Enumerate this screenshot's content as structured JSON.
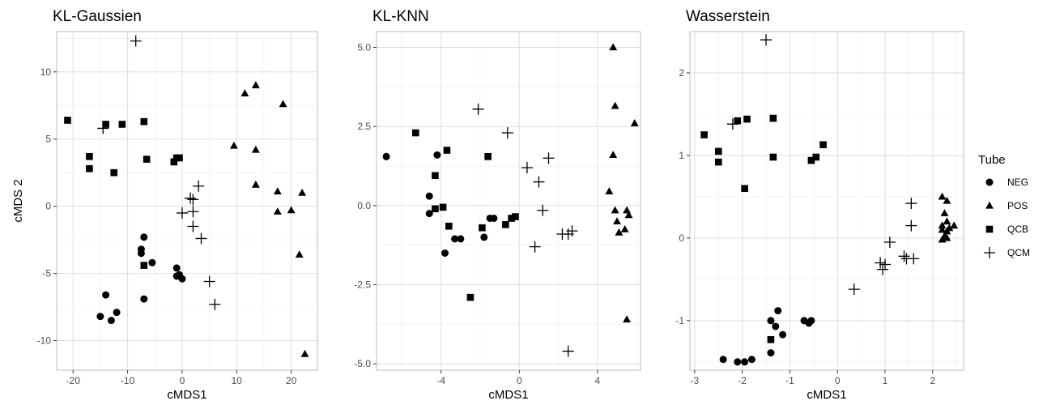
{
  "chart_data": [
    {
      "type": "scatter",
      "title": "KL-Gaussien",
      "xlabel": "cMDS1",
      "ylabel": "cMDS 2",
      "xlim": [
        -23,
        24.8
      ],
      "ylim": [
        -12.2,
        13
      ],
      "xticks": [
        -20,
        -10,
        0,
        10,
        20
      ],
      "yticks": [
        -10,
        -5,
        0,
        5,
        10
      ],
      "grid": true,
      "series": [
        {
          "name": "NEG",
          "shape": "circle",
          "x": [
            -7.5,
            -7.5,
            -7,
            -5.5,
            -7,
            -1,
            -0.5,
            0,
            -14,
            -15,
            -13,
            -12,
            -1
          ],
          "y": [
            -3.2,
            -3.5,
            -2.3,
            -4.2,
            -6.9,
            -4.6,
            -5.1,
            -5.4,
            -6.6,
            -8.2,
            -8.5,
            -7.9,
            -5.2
          ]
        },
        {
          "name": "POS",
          "shape": "triangle",
          "x": [
            11.5,
            13.5,
            18.5,
            9.5,
            13.5,
            13.5,
            17.5,
            17.5,
            20,
            22,
            21.5,
            22.5
          ],
          "y": [
            8.4,
            9.0,
            7.6,
            4.5,
            4.2,
            1.6,
            1.1,
            -0.4,
            -0.3,
            1.0,
            -3.6,
            -11.0
          ]
        },
        {
          "name": "QCB",
          "shape": "square",
          "x": [
            -21,
            -14,
            -11,
            -7,
            -17,
            -17,
            -12.5,
            -6.5,
            -1,
            -0.5,
            -1.5,
            -7
          ],
          "y": [
            6.4,
            6.1,
            6.1,
            6.3,
            3.7,
            2.8,
            2.5,
            3.5,
            3.6,
            3.6,
            3.3,
            -4.4
          ]
        },
        {
          "name": "QCM",
          "shape": "plus",
          "x": [
            -8.5,
            -14.5,
            3,
            1.5,
            2,
            0,
            2,
            2,
            3.5,
            5,
            6
          ],
          "y": [
            12.3,
            5.8,
            1.5,
            0.6,
            0.5,
            -0.5,
            -0.4,
            -1.5,
            -2.4,
            -5.6,
            -7.3
          ]
        }
      ]
    },
    {
      "type": "scatter",
      "title": "KL-KNN",
      "xlabel": "cMDS1",
      "ylabel": "",
      "xlim": [
        -7.3,
        6.2
      ],
      "ylim": [
        -5.2,
        5.5
      ],
      "xticks": [
        -4,
        0,
        4
      ],
      "yticks": [
        -5.0,
        -2.5,
        0.0,
        2.5,
        5.0
      ],
      "ytick_labels": [
        "-5.0",
        "-2.5",
        "0.0",
        "2.5",
        "5.0"
      ],
      "grid": true,
      "series": [
        {
          "name": "NEG",
          "shape": "circle",
          "x": [
            -6.8,
            -4.2,
            -4.6,
            -4.6,
            -1.5,
            -1.3,
            -1.8,
            -3.3,
            -3.0,
            -3.8
          ],
          "y": [
            1.55,
            1.6,
            0.3,
            -0.25,
            -0.4,
            -0.4,
            -1.0,
            -1.05,
            -1.05,
            -1.5
          ]
        },
        {
          "name": "POS",
          "shape": "triangle",
          "x": [
            4.8,
            4.9,
            4.8,
            4.6,
            5.9,
            4.9,
            5.0,
            5.5,
            5.6,
            5.4,
            5.1,
            5.5
          ],
          "y": [
            5.0,
            3.15,
            1.6,
            0.45,
            2.6,
            -0.15,
            -0.5,
            -0.15,
            -0.3,
            -0.75,
            -0.85,
            -3.6
          ]
        },
        {
          "name": "QCB",
          "shape": "square",
          "x": [
            -5.3,
            -3.7,
            -1.6,
            -4.3,
            -4.3,
            -3.9,
            -3.6,
            -1.9,
            -0.4,
            -0.7,
            -0.2,
            -2.5
          ],
          "y": [
            2.3,
            1.75,
            1.55,
            0.95,
            -0.1,
            -0.05,
            -0.65,
            -0.7,
            -0.4,
            -0.6,
            -0.35,
            -2.9
          ]
        },
        {
          "name": "QCM",
          "shape": "plus",
          "x": [
            -2.1,
            -0.6,
            1.5,
            0.4,
            1.0,
            1.2,
            2.2,
            2.5,
            2.7,
            0.8,
            2.5
          ],
          "y": [
            3.05,
            2.3,
            1.5,
            1.2,
            0.75,
            -0.15,
            -0.9,
            -0.9,
            -0.8,
            -1.3,
            -4.6
          ]
        }
      ]
    },
    {
      "type": "scatter",
      "title": "Wasserstein",
      "xlabel": "cMDS1",
      "ylabel": "",
      "xlim": [
        -3.1,
        2.65
      ],
      "ylim": [
        -1.6,
        2.5
      ],
      "xticks": [
        -3,
        -2,
        -1,
        0,
        1,
        2
      ],
      "yticks": [
        -1,
        0,
        1,
        2
      ],
      "grid": true,
      "series": [
        {
          "name": "NEG",
          "shape": "circle",
          "x": [
            -1.4,
            -1.25,
            -1.3,
            -1.15,
            -0.7,
            -0.6,
            -0.55,
            -1.4,
            -1.8,
            -2.4,
            -2.1,
            -1.95
          ],
          "y": [
            -1.0,
            -0.88,
            -1.07,
            -1.17,
            -1.0,
            -1.03,
            -1.0,
            -1.39,
            -1.47,
            -1.47,
            -1.5,
            -1.5
          ]
        },
        {
          "name": "POS",
          "shape": "triangle",
          "x": [
            2.2,
            2.3,
            2.25,
            2.3,
            2.2,
            2.35,
            2.45,
            2.3,
            2.2,
            2.25,
            2.3,
            2.2
          ],
          "y": [
            0.5,
            0.45,
            0.3,
            0.2,
            0.15,
            0.12,
            0.15,
            0.08,
            0.1,
            0.02,
            0.0,
            -0.02
          ]
        },
        {
          "name": "QCB",
          "shape": "square",
          "x": [
            -2.8,
            -2.5,
            -2.5,
            -2.1,
            -1.9,
            -1.35,
            -1.35,
            -0.3,
            -0.45,
            -0.55,
            -1.95,
            -1.4
          ],
          "y": [
            1.25,
            1.05,
            0.92,
            1.42,
            1.44,
            1.45,
            0.98,
            1.13,
            0.98,
            0.94,
            0.6,
            -1.23
          ]
        },
        {
          "name": "QCM",
          "shape": "plus",
          "x": [
            -1.5,
            -2.2,
            1.55,
            1.55,
            1.1,
            1.4,
            1.6,
            1.45,
            0.9,
            1.0,
            0.95,
            0.35
          ],
          "y": [
            2.4,
            1.38,
            0.42,
            0.15,
            -0.05,
            -0.22,
            -0.25,
            -0.25,
            -0.3,
            -0.32,
            -0.38,
            -0.62
          ]
        }
      ]
    }
  ],
  "legend": {
    "title": "Tube",
    "position": "right",
    "items": [
      {
        "label": "NEG",
        "shape": "circle"
      },
      {
        "label": "POS",
        "shape": "triangle"
      },
      {
        "label": "QCB",
        "shape": "square"
      },
      {
        "label": "QCM",
        "shape": "plus"
      }
    ]
  }
}
